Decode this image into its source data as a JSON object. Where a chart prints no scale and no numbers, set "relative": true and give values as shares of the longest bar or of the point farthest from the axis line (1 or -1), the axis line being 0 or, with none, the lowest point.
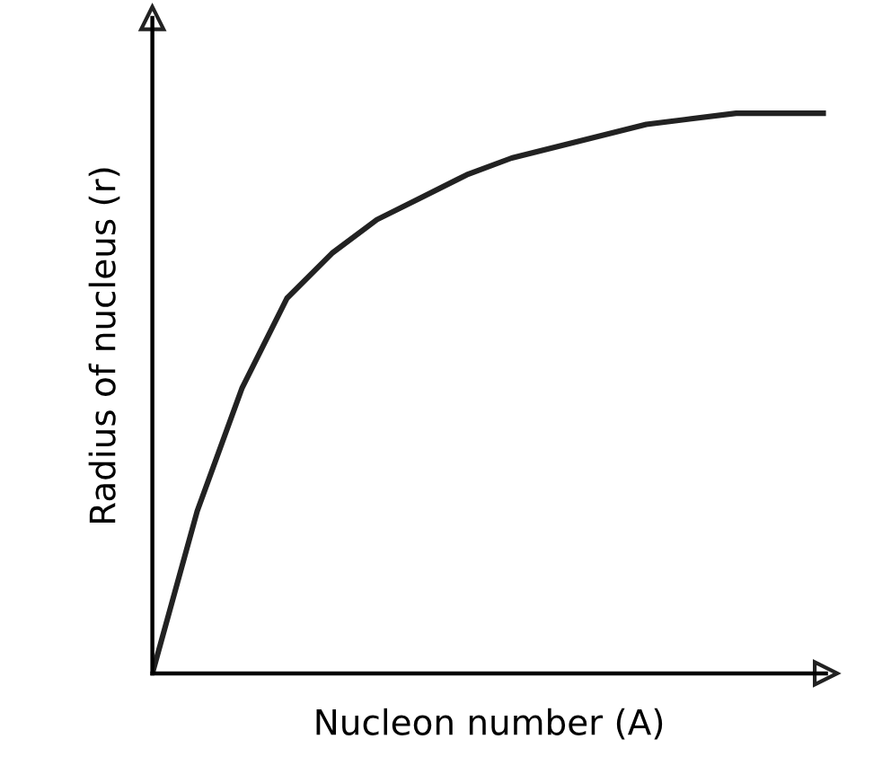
{
  "chart_data": {
    "type": "line",
    "relative": true,
    "xlabel": "Nucleon number (A)",
    "ylabel": "Radius of nucleus (r)",
    "categories": [
      null,
      null,
      null,
      null,
      null,
      null,
      null,
      null,
      null,
      null,
      null,
      null,
      null,
      null,
      null,
      null
    ],
    "series": [
      {
        "color": "#222222",
        "values": [
          0,
          0.29,
          0.51,
          0.67,
          0.75,
          0.81,
          0.85,
          0.89,
          0.92,
          0.94,
          0.96,
          0.98,
          0.99,
          1,
          1,
          1
        ]
      }
    ],
    "tick_labels": false,
    "grid": false,
    "legend": false,
    "marker": "none",
    "line_style": "solid"
  }
}
